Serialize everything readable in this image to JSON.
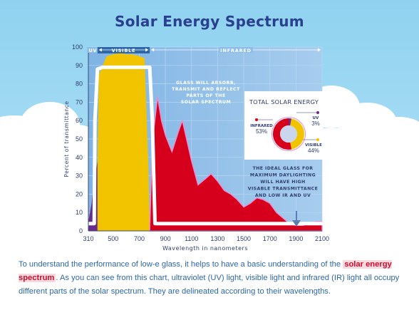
{
  "title": "Solar Energy Spectrum",
  "chart_data": {
    "type": "area",
    "xlabel": "Wavelength in nanometers",
    "ylabel": "Percent of transmittance",
    "x_ticks": [
      "310",
      "500",
      "700",
      "900",
      "1100",
      "1300",
      "1500",
      "1700",
      "1900",
      "2100"
    ],
    "y_ticks": [
      "0",
      "10",
      "20",
      "30",
      "40",
      "50",
      "60",
      "70",
      "80",
      "90",
      "100"
    ],
    "xlim": [
      310,
      2100
    ],
    "ylim": [
      0,
      100
    ],
    "bands": [
      {
        "label": "UV",
        "range": [
          310,
          380
        ],
        "color": "#6a2c8a"
      },
      {
        "label": "VISIBLE",
        "range": [
          380,
          780
        ],
        "color": "#f2c400"
      },
      {
        "label": "INFRARED",
        "range": [
          780,
          2100
        ],
        "color": "#d6001c"
      }
    ],
    "series": [
      {
        "points": [
          [
            310,
            5
          ],
          [
            335,
            15
          ],
          [
            350,
            25
          ],
          [
            380,
            38
          ],
          [
            390,
            85
          ],
          [
            450,
            95
          ],
          [
            500,
            96
          ],
          [
            560,
            97
          ],
          [
            600,
            96
          ],
          [
            650,
            96
          ],
          [
            700,
            95
          ],
          [
            740,
            94
          ],
          [
            770,
            35
          ],
          [
            780,
            0
          ]
        ]
      },
      {
        "points": [
          [
            780,
            0
          ],
          [
            800,
            48
          ],
          [
            840,
            73
          ],
          [
            870,
            60
          ],
          [
            900,
            52
          ],
          [
            950,
            43
          ],
          [
            1000,
            54
          ],
          [
            1030,
            60
          ],
          [
            1100,
            38
          ],
          [
            1150,
            25
          ],
          [
            1200,
            28
          ],
          [
            1250,
            31
          ],
          [
            1300,
            27
          ],
          [
            1350,
            22
          ],
          [
            1400,
            20
          ],
          [
            1450,
            17
          ],
          [
            1500,
            13
          ],
          [
            1550,
            15
          ],
          [
            1600,
            18
          ],
          [
            1650,
            17
          ],
          [
            1700,
            15
          ],
          [
            1750,
            10
          ],
          [
            1800,
            7
          ],
          [
            1850,
            4
          ],
          [
            1900,
            3
          ],
          [
            1950,
            3
          ],
          [
            2000,
            4
          ],
          [
            2050,
            5
          ],
          [
            2100,
            5
          ]
        ]
      },
      {
        "points": [
          [
            310,
            4
          ],
          [
            355,
            4
          ],
          [
            360,
            60
          ],
          [
            380,
            88
          ],
          [
            420,
            89
          ],
          [
            500,
            89
          ],
          [
            600,
            89
          ],
          [
            700,
            89
          ],
          [
            780,
            89
          ],
          [
            800,
            60
          ],
          [
            820,
            4
          ],
          [
            2100,
            4
          ]
        ]
      }
    ],
    "annotations": {
      "absorb": [
        "GLASS WILL ABSORB,",
        "TRANSMIT AND REFLECT",
        "PARTS OF THE",
        "SOLAR SPECTRUM"
      ],
      "ideal": [
        "THE IDEAL GLASS FOR",
        "MAXIMUM DAYLIGHTING",
        "WILL HAVE HIGH",
        "VISABLE TRANSMITTANCE",
        "AND LOW IR AND UV"
      ]
    },
    "donut": {
      "title": "TOTAL SOLAR ENERGY",
      "slices": [
        {
          "label": "INFRARED",
          "value": 53,
          "pct": "53%",
          "color": "#d6001c"
        },
        {
          "label": "UV",
          "value": 3,
          "pct": "3%",
          "color": "#6a2c8a"
        },
        {
          "label": "VISIBLE",
          "value": 44,
          "pct": "44%",
          "color": "#f2c400"
        }
      ]
    }
  },
  "caption": {
    "before": "To understand the performance of low-e glass, it helps to have a basic understanding of the ",
    "highlight": "solar energy spectrum",
    "after": ". As you can see from this chart, ultraviolet (UV) light, visible light and infrared (IR) light all occupy different parts of the solar spectrum. They are delineated according to their wavelengths."
  }
}
